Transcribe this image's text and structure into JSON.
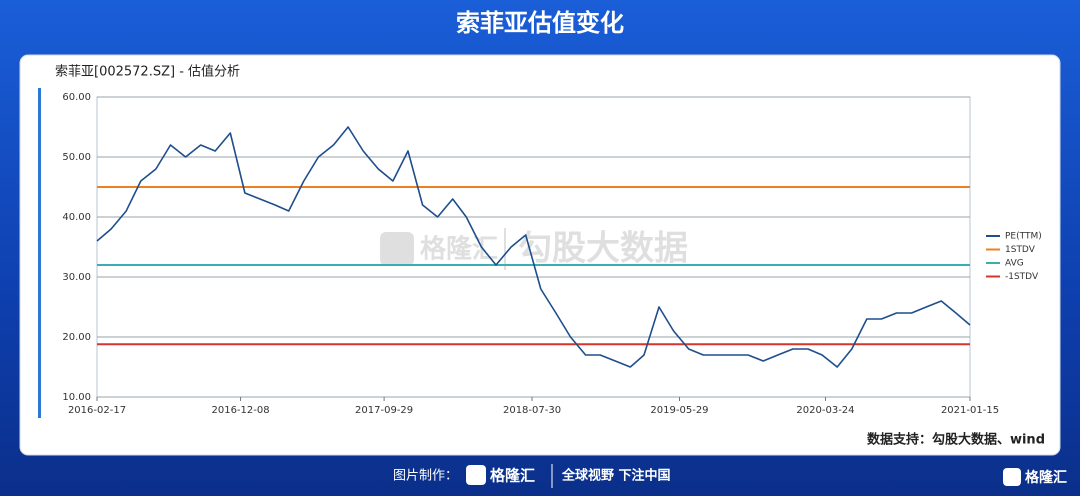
{
  "header": {
    "title": "索菲亚估值变化"
  },
  "chart_data": {
    "type": "line",
    "title": "索菲亚[002572.SZ] - 估值分析",
    "x": [
      "2016-02-17",
      "2016-03-17",
      "2016-04-17",
      "2016-05-17",
      "2016-06-17",
      "2016-07-17",
      "2016-08-17",
      "2016-09-17",
      "2016-10-17",
      "2016-11-17",
      "2016-12-17",
      "2017-01-17",
      "2017-02-17",
      "2017-03-17",
      "2017-04-17",
      "2017-05-17",
      "2017-06-17",
      "2017-07-17",
      "2017-08-17",
      "2017-09-17",
      "2017-10-17",
      "2017-11-17",
      "2017-12-17",
      "2018-01-17",
      "2018-02-17",
      "2018-03-17",
      "2018-04-17",
      "2018-05-17",
      "2018-06-17",
      "2018-07-17",
      "2018-08-17",
      "2018-09-17",
      "2018-10-17",
      "2018-11-17",
      "2018-12-17",
      "2019-01-17",
      "2019-02-17",
      "2019-03-17",
      "2019-04-17",
      "2019-05-17",
      "2019-06-17",
      "2019-07-17",
      "2019-08-17",
      "2019-09-17",
      "2019-10-17",
      "2019-11-17",
      "2019-12-17",
      "2020-01-17",
      "2020-02-17",
      "2020-03-17",
      "2020-04-17",
      "2020-05-17",
      "2020-06-17",
      "2020-07-17",
      "2020-08-17",
      "2020-09-17",
      "2020-10-17",
      "2020-11-17",
      "2020-12-17",
      "2021-01-15"
    ],
    "series": [
      {
        "name": "PE(TTM)",
        "color": "#1f4e8c",
        "values": [
          36,
          38,
          41,
          46,
          48,
          52,
          50,
          52,
          51,
          54,
          44,
          43,
          42,
          41,
          46,
          50,
          52,
          55,
          51,
          48,
          46,
          51,
          42,
          40,
          43,
          40,
          35,
          32,
          35,
          37,
          28,
          24,
          20,
          17,
          17,
          16,
          15,
          17,
          25,
          21,
          18,
          17,
          17,
          17,
          17,
          16,
          17,
          18,
          18,
          17,
          15,
          18,
          23,
          23,
          24,
          24,
          25,
          26,
          24,
          22
        ]
      }
    ],
    "lines": [
      {
        "name": "1STDV",
        "value": 45,
        "color": "#f07f22"
      },
      {
        "name": "AVG",
        "value": 32,
        "color": "#3aaeb0"
      },
      {
        "name": "-1STDV",
        "value": 18.8,
        "color": "#d9342b"
      }
    ],
    "xlim": [
      "2016-02-17",
      "2021-01-15"
    ],
    "xticks": [
      "2016-02-17",
      "2016-12-08",
      "2017-09-29",
      "2018-07-30",
      "2019-05-29",
      "2020-03-24",
      "2021-01-15"
    ],
    "ylim": [
      10,
      60
    ],
    "yticks": [
      {
        "value": 10,
        "label": "10.00"
      },
      {
        "value": 20,
        "label": "20.00"
      },
      {
        "value": 30,
        "label": "30.00"
      },
      {
        "value": 40,
        "label": "40.00"
      },
      {
        "value": 50,
        "label": "50.00"
      },
      {
        "value": 60,
        "label": "60.00"
      }
    ],
    "grid": true,
    "legend": "right"
  },
  "watermark": {
    "brand": "格隆汇",
    "text": "勾股大数据"
  },
  "source": "数据支持：勾股大数据、wind",
  "footer": {
    "label": "图片制作：",
    "brand": "格隆汇",
    "slogan": "全球视野 下注中国",
    "corner_brand": "格隆汇"
  }
}
